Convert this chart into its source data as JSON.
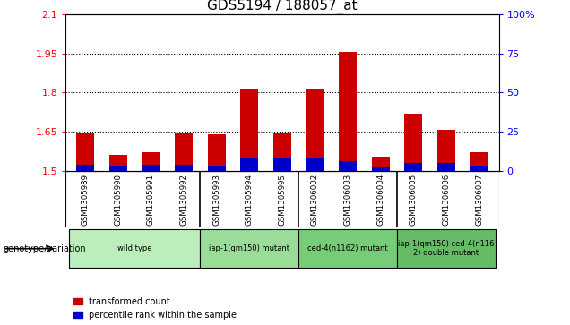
{
  "title": "GDS5194 / 188057_at",
  "samples": [
    "GSM1305989",
    "GSM1305990",
    "GSM1305991",
    "GSM1305992",
    "GSM1305993",
    "GSM1305994",
    "GSM1305995",
    "GSM1306002",
    "GSM1306003",
    "GSM1306004",
    "GSM1306005",
    "GSM1306006",
    "GSM1306007"
  ],
  "red_values": [
    1.648,
    1.562,
    1.57,
    1.648,
    1.638,
    1.815,
    1.648,
    1.815,
    1.958,
    1.555,
    1.718,
    1.658,
    1.57
  ],
  "blue_percentiles": [
    4,
    3,
    4,
    4,
    3,
    8,
    8,
    8,
    6,
    2,
    5,
    5,
    3
  ],
  "ylim_left": [
    1.5,
    2.1
  ],
  "ylim_right": [
    0,
    100
  ],
  "yticks_left": [
    1.5,
    1.65,
    1.8,
    1.95,
    2.1
  ],
  "yticks_right": [
    0,
    25,
    50,
    75,
    100
  ],
  "ytick_labels_left": [
    "1.5",
    "1.65",
    "1.8",
    "1.95",
    "2.1"
  ],
  "ytick_labels_right": [
    "0",
    "25",
    "50",
    "75",
    "100%"
  ],
  "dotted_lines": [
    1.65,
    1.8,
    1.95
  ],
  "genotype_groups": [
    {
      "label": "wild type",
      "start": 0,
      "end": 3,
      "color": "#bbeebb"
    },
    {
      "label": "iap-1(qm150) mutant",
      "start": 4,
      "end": 6,
      "color": "#99dd99"
    },
    {
      "label": "ced-4(n1162) mutant",
      "start": 7,
      "end": 9,
      "color": "#77cc77"
    },
    {
      "label": "iap-1(qm150) ced-4(n116\n2) double mutant",
      "start": 10,
      "end": 12,
      "color": "#66bb66"
    }
  ],
  "legend_red": "transformed count",
  "legend_blue": "percentile rank within the sample",
  "genotype_label": "genotype/variation",
  "bar_width": 0.55,
  "bar_bottom": 1.5,
  "red_color": "#cc0000",
  "blue_color": "#0000cc",
  "col_bg_color": "#cccccc",
  "group_separators": [
    3.5,
    6.5,
    9.5
  ]
}
